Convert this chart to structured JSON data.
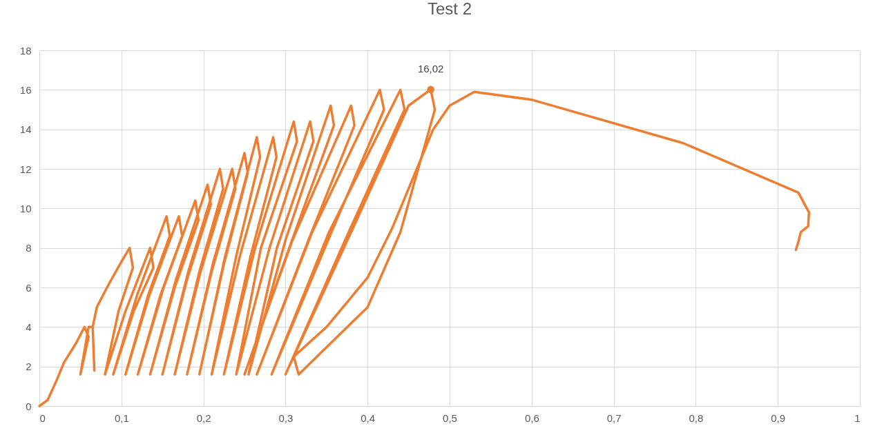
{
  "chart_data": {
    "type": "line",
    "title": "Test 2",
    "xlim": [
      0,
      1
    ],
    "ylim": [
      0,
      18
    ],
    "xticks": [
      0,
      {
        "value": 0.1,
        "label": "0,1"
      },
      {
        "value": 0.2,
        "label": "0,2"
      },
      {
        "value": 0.3,
        "label": "0,3"
      },
      {
        "value": 0.4,
        "label": "0,4"
      },
      {
        "value": 0.5,
        "label": "0,5"
      },
      {
        "value": 0.6,
        "label": "0,6"
      },
      {
        "value": 0.7,
        "label": "0,7"
      },
      {
        "value": 0.8,
        "label": "0,8"
      },
      {
        "value": 0.9,
        "label": "0,9"
      },
      1
    ],
    "yticks": [
      0,
      2,
      4,
      6,
      8,
      10,
      12,
      14,
      16,
      18
    ],
    "grid": true,
    "line_style": "solid",
    "series": [
      {
        "color": "#ed7d31",
        "marker": "none",
        "x": [
          0,
          0.01,
          0.02,
          0.03,
          0.045,
          0.055,
          0.06,
          0.05,
          0.06,
          0.065,
          0.067,
          0.065,
          0.07,
          0.085,
          0.1,
          0.11,
          0.114,
          0.0965,
          0.08,
          0.105,
          0.135,
          0.139,
          0.115,
          0.09,
          0.119,
          0.155,
          0.159,
          0.1325,
          0.105,
          0.134,
          0.17,
          0.174,
          0.1475,
          0.12,
          0.1515,
          0.19,
          0.194,
          0.165,
          0.135,
          0.1665,
          0.205,
          0.209,
          0.18,
          0.15,
          0.1815,
          0.22,
          0.224,
          0.195,
          0.165,
          0.1965,
          0.235,
          0.239,
          0.21,
          0.18,
          0.2115,
          0.25,
          0.254,
          0.225,
          0.195,
          0.2265,
          0.265,
          0.269,
          0.24,
          0.21,
          0.2445,
          0.285,
          0.289,
          0.2575,
          0.225,
          0.263,
          0.31,
          0.314,
          0.27,
          0.24,
          0.2805,
          0.33,
          0.334,
          0.2895,
          0.255,
          0.3,
          0.355,
          0.359,
          0.308,
          0.25,
          0.3085,
          0.38,
          0.384,
          0.328,
          0.265,
          0.3325,
          0.415,
          0.42,
          0.356,
          0.283,
          0.353,
          0.44,
          0.445,
          0.377,
          0.3,
          0.38,
          0.45,
          0.477,
          0.482,
          0.44,
          0.4,
          0.316,
          0.31,
          0.35,
          0.4,
          0.43,
          0.46,
          0.48,
          0.5,
          0.53,
          0.6,
          0.785,
          0.925,
          0.938,
          0.937,
          0.928,
          0.925,
          0.922
        ],
        "values": [
          0,
          0.3,
          1.2,
          2.2,
          3.2,
          4.0,
          3.5,
          1.6,
          4.0,
          4.0,
          1.8,
          4.0,
          5.0,
          6.2,
          7.3,
          8.0,
          7.0,
          4.8,
          1.6,
          4.8,
          8.0,
          7.0,
          4.8,
          1.6,
          5.6,
          9.6,
          8.6,
          5.6,
          1.6,
          5.6,
          9.6,
          8.6,
          5.6,
          1.6,
          6.0,
          10.4,
          9.4,
          6.0,
          1.6,
          6.4,
          11.2,
          10.2,
          6.4,
          1.6,
          6.8,
          12.0,
          11.0,
          6.8,
          1.6,
          6.8,
          12.0,
          11.0,
          6.8,
          1.6,
          7.2,
          12.8,
          11.8,
          7.2,
          1.6,
          7.6,
          13.6,
          12.6,
          7.6,
          1.6,
          7.6,
          13.6,
          12.6,
          7.6,
          1.6,
          8.0,
          14.4,
          13.4,
          8.0,
          1.6,
          8.0,
          14.4,
          13.4,
          8.0,
          1.6,
          8.4,
          15.2,
          14.2,
          8.4,
          1.6,
          8.4,
          15.2,
          14.2,
          8.4,
          1.6,
          8.8,
          16.0,
          15.0,
          8.8,
          1.6,
          8.8,
          16.0,
          15.0,
          8.8,
          1.6,
          8.8,
          15.2,
          16.02,
          15.0,
          8.8,
          5.0,
          1.6,
          2.5,
          4.0,
          6.5,
          9.0,
          12.0,
          14.0,
          15.2,
          15.9,
          15.5,
          13.3,
          10.8,
          9.8,
          9.1,
          8.8,
          8.3,
          7.9
        ]
      },
      {
        "type": "scatter",
        "color": "#ed7d31",
        "marker": "circle",
        "x": [
          0.477
        ],
        "values": [
          16.02
        ],
        "value_labels": [
          "16,02"
        ]
      }
    ]
  }
}
